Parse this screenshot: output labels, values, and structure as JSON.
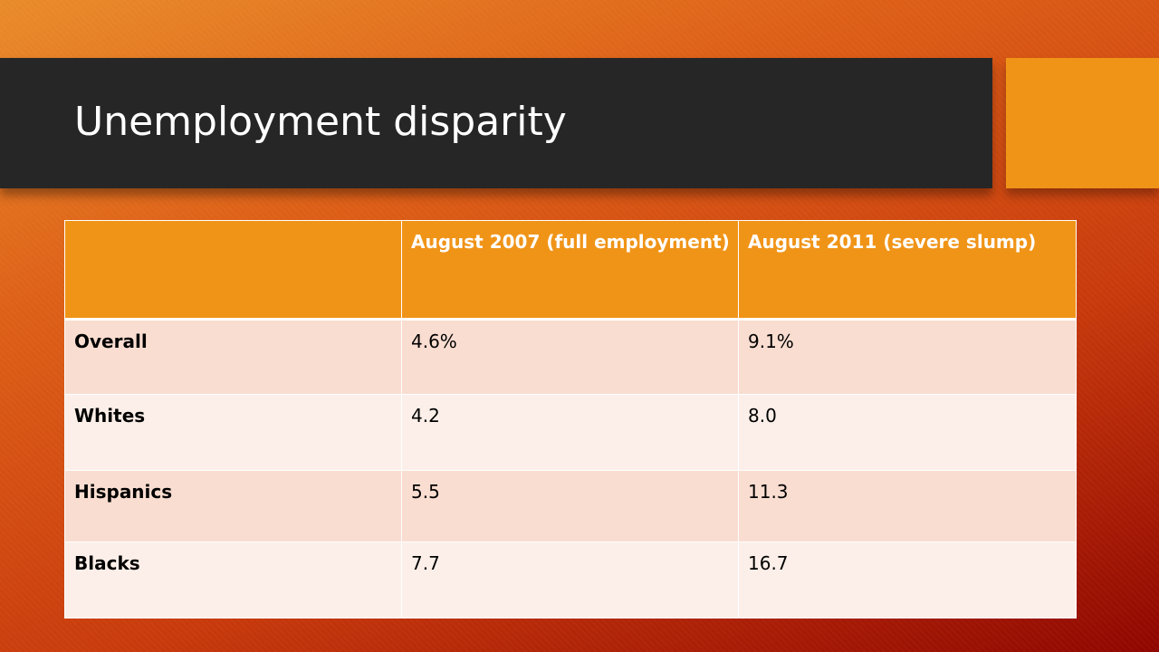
{
  "slide": {
    "title": "Unemployment disparity"
  },
  "colors": {
    "title_bar": "#262626",
    "accent": "#f09418",
    "header_row": "#f09418",
    "row_band_dark": "#f9ddd0",
    "row_band_light": "#fcefe9"
  },
  "table": {
    "columns": [
      "",
      "August 2007 (full employment)",
      "August 2011 (severe slump)"
    ],
    "rows": [
      {
        "label": "Overall",
        "values": [
          "4.6%",
          "9.1%"
        ]
      },
      {
        "label": "Whites",
        "values": [
          "4.2",
          "8.0"
        ]
      },
      {
        "label": "Hispanics",
        "values": [
          "5.5",
          "11.3"
        ]
      },
      {
        "label": "Blacks",
        "values": [
          "7.7",
          "16.7"
        ]
      }
    ]
  }
}
